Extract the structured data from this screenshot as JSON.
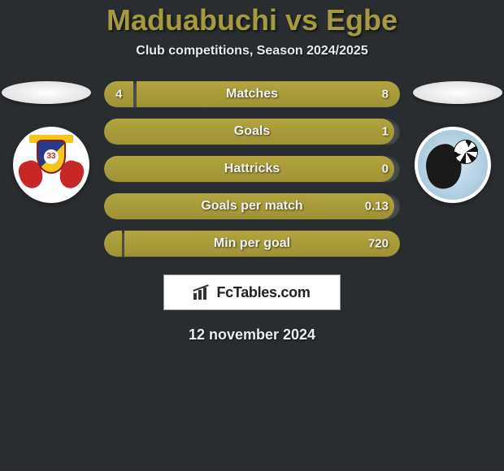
{
  "header": {
    "title": "Maduabuchi vs Egbe",
    "subtitle": "Club competitions, Season 2024/2025",
    "title_color": "#a49a3f"
  },
  "footer": {
    "watermark": "FcTables.com",
    "date": "12 november 2024"
  },
  "colors": {
    "background": "#2a2d30",
    "bar_fill": "#a49a3f",
    "bar_track": "#4a4d50"
  },
  "stats": [
    {
      "label": "Matches",
      "left_val": "4",
      "right_val": "8",
      "left_pct": 10,
      "right_pct": 89
    },
    {
      "label": "Goals",
      "left_val": "",
      "right_val": "1",
      "left_pct": 98,
      "right_pct": 0
    },
    {
      "label": "Hattricks",
      "left_val": "",
      "right_val": "0",
      "left_pct": 98,
      "right_pct": 0
    },
    {
      "label": "Goals per match",
      "left_val": "",
      "right_val": "0.13",
      "left_pct": 98,
      "right_pct": 0
    },
    {
      "label": "Min per goal",
      "left_val": "",
      "right_val": "720",
      "left_pct": 6,
      "right_pct": 93
    }
  ]
}
